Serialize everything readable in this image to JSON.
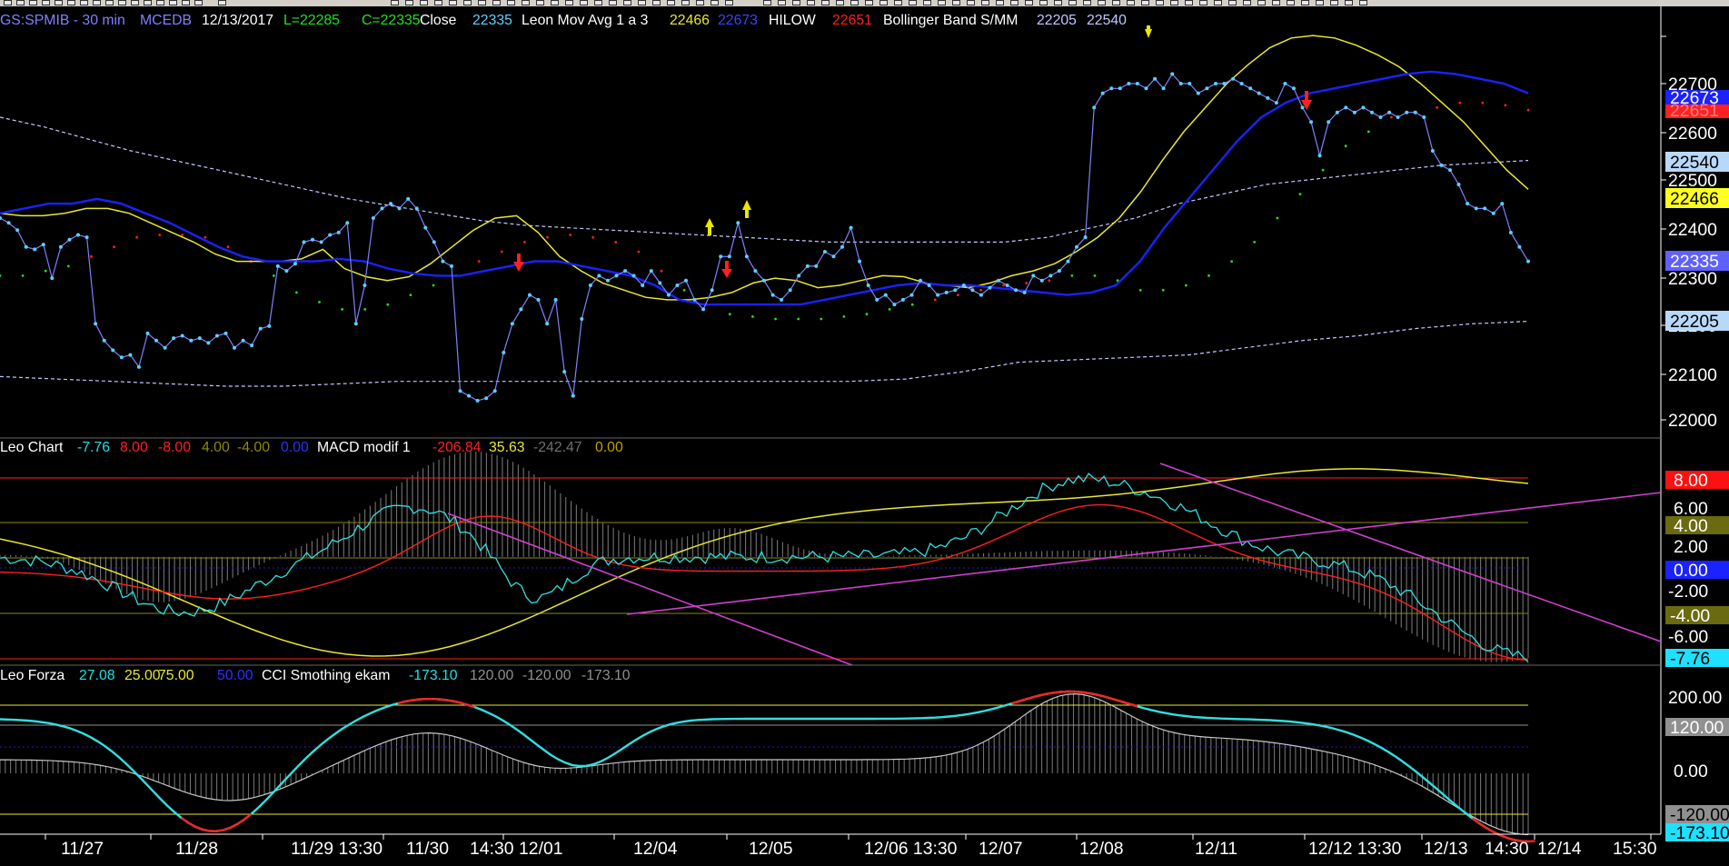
{
  "header": {
    "symbol": "GS:SPMIB - 30 min",
    "db": "MCEDB",
    "date": "12/13/2017",
    "low": "L=22285",
    "close_val": "C=22335",
    "close_label": "Close",
    "close_num": "22335",
    "mov_avg_label": "Leon Mov Avg 1 a 3",
    "mov_avg_v1": "22466",
    "mov_avg_v2": "22673",
    "hilow_label": "HILOW",
    "hilow_v": "22651",
    "boll_label": "Bollinger Band S/MM",
    "boll_v1": "22205",
    "boll_v2": "22540"
  },
  "macd_header": {
    "title": "Leo Chart",
    "v1": "-7.76",
    "v2": "8.00",
    "v3": "-8.00",
    "v4": "4.00",
    "v5": "-4.00",
    "v6": "0.00",
    "macd_label": "MACD modif 1",
    "m1": "-206.84",
    "m2": "35.63",
    "m3": "-242.47",
    "m4": "0.00"
  },
  "cci_header": {
    "title": "Leo Forza",
    "v1": "27.08",
    "v2": "25.00",
    "v3": "75.00",
    "v4": "50.00",
    "cci_label": "CCI Smothing ekam",
    "c1": "-173.10",
    "c2": "120.00",
    "c3": "-120.00",
    "c4": "-173.10"
  },
  "colors": {
    "background": "#000000",
    "price": "#5bd0ff",
    "mov_avg_blue": "#1a22ff",
    "mov_avg_yellow": "#e8e830",
    "hilow_red": "#ff2020",
    "hilow_green": "#20e020",
    "bollinger": "#c0c8ff",
    "trend_magenta": "#d040d0",
    "cci_cyan": "#30e0e0",
    "cci_red": "#ff2020"
  },
  "chart_data": [
    {
      "type": "line",
      "panel": "price",
      "title": "GS:SPMIB - 30 min",
      "ylim": [
        21930,
        22810
      ],
      "y_ticks": [
        "22700",
        "22600",
        "22500",
        "22400",
        "22300",
        "22200",
        "22100",
        "22000"
      ],
      "x_labels": [
        "11/27",
        "11/28",
        "11/29 13:30",
        "11/30",
        "14:30",
        "12/01",
        "12/04",
        "12/05",
        "12/06 13:30",
        "12/07",
        "12/08",
        "12/11",
        "12/12 13:30",
        "12/13",
        "14:30",
        "12/14",
        "15:30"
      ],
      "series": [
        {
          "name": "Close",
          "values": [
            22420,
            22410,
            22395,
            22360,
            22355,
            22365,
            22295,
            22360,
            22375,
            22385,
            22380,
            22200,
            22165,
            22145,
            22130,
            22135,
            22110,
            22180,
            22165,
            22150,
            22170,
            22175,
            22165,
            22170,
            22160,
            22175,
            22180,
            22150,
            22165,
            22155,
            22190,
            22195,
            22320,
            22310,
            22325,
            22370,
            22375,
            22370,
            22385,
            22390,
            22410,
            22200,
            22280,
            22420,
            22440,
            22450,
            22440,
            22460,
            22440,
            22400,
            22370,
            22330,
            22320,
            22060,
            22050,
            22040,
            22045,
            22060,
            22140,
            22200,
            22230,
            22260,
            22250,
            22200,
            22250,
            22100,
            22050,
            22210,
            22280,
            22300,
            22290,
            22300,
            22310,
            22300,
            22280,
            22310,
            22285,
            22260,
            22280,
            22290,
            22250,
            22230,
            22270,
            22340,
            22340,
            22410,
            22340,
            22310,
            22290,
            22260,
            22250,
            22270,
            22300,
            22320,
            22320,
            22350,
            22340,
            22360,
            22400,
            22330,
            22280,
            22250,
            22260,
            22240,
            22250,
            22260,
            22290,
            22280,
            22260,
            22265,
            22270,
            22280,
            22270,
            22260,
            22275,
            22290,
            22280,
            22270,
            22265,
            22300,
            22290,
            22300,
            22310,
            22330,
            22360,
            22380,
            22650,
            22680,
            22690,
            22690,
            22700,
            22700,
            22690,
            22710,
            22690,
            22720,
            22700,
            22700,
            22680,
            22690,
            22700,
            22700,
            22710,
            22700,
            22690,
            22680,
            22670,
            22660,
            22700,
            22690,
            22650,
            22620,
            22550,
            22620,
            22640,
            22650,
            22640,
            22650,
            22640,
            22630,
            22640,
            22630,
            22640,
            22640,
            22630,
            22560,
            22530,
            22520,
            22490,
            22450,
            22440,
            22440,
            22430,
            22450,
            22390,
            22360,
            22330
          ]
        },
        {
          "name": "Leon Mov Avg 1 a 3",
          "values": [
            22430,
            22425,
            22425,
            22430,
            22440,
            22440,
            22430,
            22410,
            22390,
            22370,
            22345,
            22330,
            22330,
            22330,
            22335,
            22355,
            22315,
            22298,
            22290,
            22298,
            22325,
            22360,
            22395,
            22420,
            22425,
            22390,
            22340,
            22310,
            22285,
            22270,
            22255,
            22250,
            22250,
            22255,
            22265,
            22285,
            22295,
            22290,
            22275,
            22280,
            22290,
            22300,
            22298,
            22285,
            22280,
            22275,
            22285,
            22300,
            22310,
            22325,
            22350,
            22380,
            22420,
            22475,
            22540,
            22600,
            22650,
            22700,
            22740,
            22775,
            22795,
            22800,
            22795,
            22780,
            22760,
            22735,
            22700,
            22660,
            22620,
            22570,
            22520,
            22480
          ]
        },
        {
          "name": "Leon Mov Avg 1 a 3",
          "values": [
            22430,
            22440,
            22450,
            22450,
            22460,
            22450,
            22430,
            22410,
            22385,
            22360,
            22340,
            22330,
            22330,
            22330,
            22335,
            22330,
            22315,
            22305,
            22300,
            22300,
            22310,
            22320,
            22330,
            22330,
            22320,
            22310,
            22300,
            22280,
            22250,
            22240,
            22240,
            22240,
            22240,
            22240,
            22250,
            22260,
            22270,
            22280,
            22285,
            22280,
            22280,
            22275,
            22270,
            22265,
            22260,
            22265,
            22280,
            22330,
            22400,
            22460,
            22520,
            22580,
            22630,
            22660,
            22680,
            22690,
            22700,
            22710,
            22720,
            22725,
            22720,
            22710,
            22700,
            22680
          ]
        },
        {
          "name": "HILOW",
          "values": [
            22300,
            22300,
            22310,
            22320,
            22340,
            22360,
            22380,
            22385,
            22385,
            22380,
            22360,
            22330,
            22300,
            22265,
            22245,
            22230,
            22230,
            22240,
            22260,
            22280,
            22300,
            22330,
            22350,
            22370,
            22380,
            22385,
            22380,
            22370,
            22350,
            22310,
            22270,
            22240,
            22220,
            22215,
            22210,
            22210,
            22210,
            22215,
            22220,
            22230,
            22240,
            22250,
            22260,
            22270,
            22280,
            22285,
            22290,
            22300,
            22300,
            22290,
            22270,
            22270,
            22280,
            22300,
            22330,
            22370,
            22420,
            22470,
            22520,
            22570,
            22600,
            22630,
            22640,
            22650,
            22660,
            22660,
            22655,
            22645
          ]
        },
        {
          "name": "Bollinger Band S/MM",
          "values": [
            22630,
            22610,
            22585,
            22560,
            22540,
            22520,
            22500,
            22480,
            22460,
            22445,
            22430,
            22415,
            22405,
            22400,
            22395,
            22390,
            22385,
            22380,
            22375,
            22370,
            22370,
            22370,
            22370,
            22370,
            22380,
            22400,
            22420,
            22450,
            22470,
            22490,
            22500,
            22510,
            22520,
            22530,
            22535,
            22540
          ]
        },
        {
          "name": "Bollinger Band S/MM",
          "values": [
            22090,
            22085,
            22080,
            22075,
            22070,
            22070,
            22075,
            22080,
            22080,
            22080,
            22080,
            22080,
            22080,
            22080,
            22080,
            22080,
            22085,
            22100,
            22120,
            22125,
            22130,
            22135,
            22150,
            22165,
            22175,
            22190,
            22200,
            22205
          ]
        }
      ]
    },
    {
      "type": "line",
      "panel": "macd",
      "title": "Leo Chart",
      "ylim": [
        -10,
        10
      ],
      "y_ticks": [
        "8.00",
        "6.00",
        "4.00",
        "2.00",
        "0.00",
        "-2.00",
        "-4.00",
        "-6.00",
        "-7.76"
      ],
      "levels": [
        8,
        4,
        1,
        -4,
        -8
      ]
    },
    {
      "type": "line",
      "panel": "cci",
      "title": "Leo Forza",
      "ylim": [
        -200,
        260
      ],
      "y_ticks": [
        "200.00",
        "120.00",
        "0.00",
        "-120.00",
        "-173.10"
      ],
      "levels": [
        200,
        120,
        -120
      ]
    }
  ]
}
